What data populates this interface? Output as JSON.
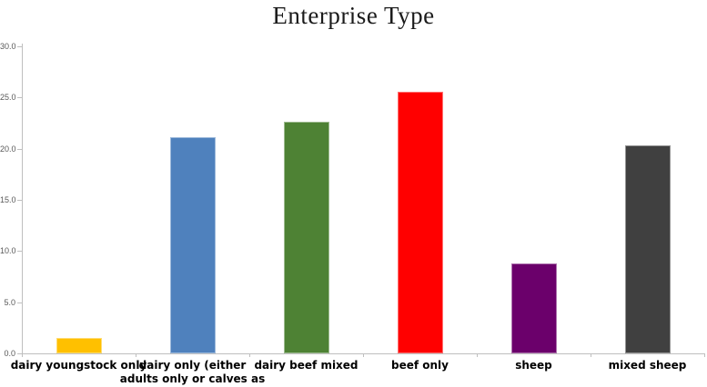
{
  "chart_data": {
    "type": "bar",
    "title": "Enterprise Type",
    "categories": [
      "dairy youngstock only",
      "dairy only (either adults only or calves as well)",
      "dairy beef mixed",
      "beef only",
      "sheep",
      "mixed sheep"
    ],
    "values": [
      1.5,
      21.1,
      22.6,
      25.6,
      8.8,
      20.3
    ],
    "colors": [
      "#FFC000",
      "#4F81BD",
      "#4E8234",
      "#FF0000",
      "#6B006B",
      "#404040"
    ],
    "xlabel": "",
    "ylabel": "",
    "ylim": [
      0,
      30
    ],
    "yticks": [
      0,
      5,
      10,
      15,
      20,
      25,
      30
    ],
    "ytick_labels": [
      "0.0",
      "5.0",
      "10.0",
      "15.0",
      "20.0",
      "25.0",
      "30.0"
    ],
    "grid": false,
    "legend": false
  },
  "style": {
    "axis_color": "#BFBFBF",
    "ytick_text_color": "#595959",
    "xtick_text_color": "#000000",
    "title_color": "#1A1A1A",
    "background": "#FFFFFF"
  }
}
